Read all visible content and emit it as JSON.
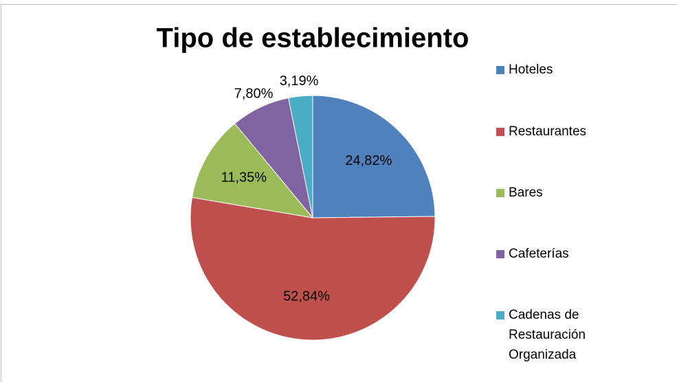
{
  "chart_data": {
    "type": "pie",
    "title": "Tipo de establecimiento",
    "categories": [
      "Hoteles",
      "Restaurantes",
      "Bares",
      "Cafeterías",
      "Cadenas de Restauración Organizada"
    ],
    "values": [
      24.82,
      52.84,
      11.35,
      7.8,
      3.19
    ],
    "value_labels": [
      "24,82%",
      "52,84%",
      "11,35%",
      "7,80%",
      "3,19%"
    ],
    "colors": [
      "#4f81bd",
      "#c0504d",
      "#9bbb59",
      "#8064a2",
      "#4bacc6"
    ],
    "legend": "right"
  }
}
